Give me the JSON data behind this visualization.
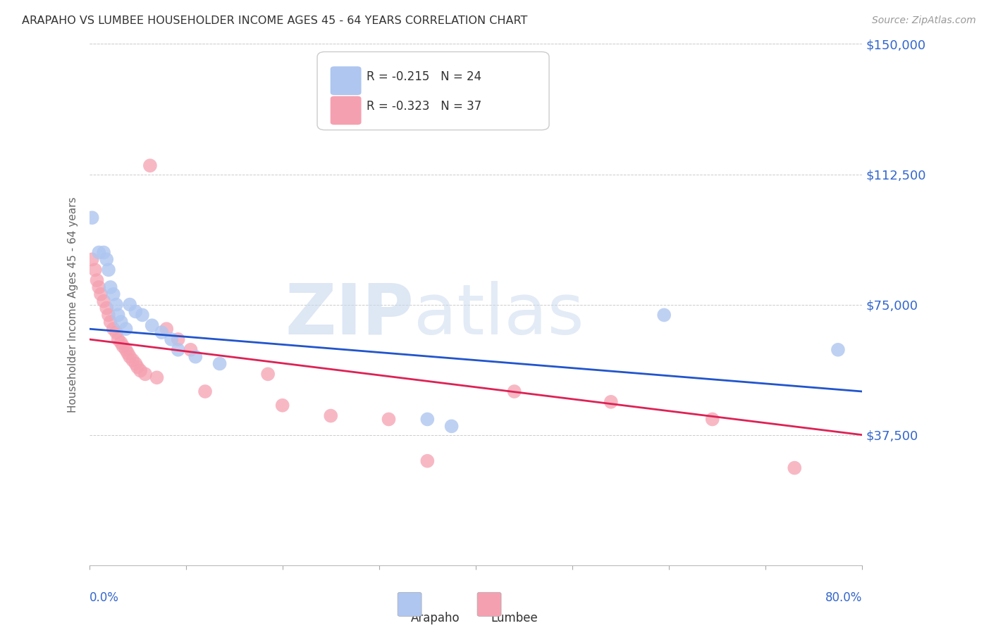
{
  "title": "ARAPAHO VS LUMBEE HOUSEHOLDER INCOME AGES 45 - 64 YEARS CORRELATION CHART",
  "source": "Source: ZipAtlas.com",
  "ylabel": "Householder Income Ages 45 - 64 years",
  "xlim": [
    0.0,
    0.8
  ],
  "ylim": [
    0,
    150000
  ],
  "yticks": [
    0,
    37500,
    75000,
    112500,
    150000
  ],
  "ytick_labels": [
    "",
    "$37,500",
    "$75,000",
    "$112,500",
    "$150,000"
  ],
  "watermark_zip": "ZIP",
  "watermark_atlas": "atlas",
  "arapaho_r": "-0.215",
  "arapaho_n": "24",
  "lumbee_r": "-0.323",
  "lumbee_n": "37",
  "arapaho_color": "#aec6f0",
  "lumbee_color": "#f5a0b0",
  "arapaho_line_color": "#2255cc",
  "lumbee_line_color": "#dd2255",
  "arapaho_x": [
    0.003,
    0.01,
    0.015,
    0.018,
    0.02,
    0.022,
    0.025,
    0.028,
    0.03,
    0.033,
    0.038,
    0.042,
    0.048,
    0.055,
    0.065,
    0.075,
    0.085,
    0.092,
    0.11,
    0.135,
    0.35,
    0.375,
    0.595,
    0.775
  ],
  "arapaho_y": [
    100000,
    90000,
    90000,
    88000,
    85000,
    80000,
    78000,
    75000,
    72000,
    70000,
    68000,
    75000,
    73000,
    72000,
    69000,
    67000,
    65000,
    62000,
    60000,
    58000,
    42000,
    40000,
    72000,
    62000
  ],
  "lumbee_x": [
    0.003,
    0.006,
    0.008,
    0.01,
    0.012,
    0.015,
    0.018,
    0.02,
    0.022,
    0.025,
    0.028,
    0.03,
    0.033,
    0.035,
    0.038,
    0.04,
    0.042,
    0.045,
    0.048,
    0.05,
    0.053,
    0.058,
    0.063,
    0.07,
    0.08,
    0.092,
    0.105,
    0.12,
    0.185,
    0.2,
    0.25,
    0.31,
    0.35,
    0.44,
    0.54,
    0.645,
    0.73
  ],
  "lumbee_y": [
    88000,
    85000,
    82000,
    80000,
    78000,
    76000,
    74000,
    72000,
    70000,
    68000,
    67000,
    65000,
    64000,
    63000,
    62000,
    61000,
    60000,
    59000,
    58000,
    57000,
    56000,
    55000,
    115000,
    54000,
    68000,
    65000,
    62000,
    50000,
    55000,
    46000,
    43000,
    42000,
    30000,
    50000,
    47000,
    42000,
    28000
  ]
}
